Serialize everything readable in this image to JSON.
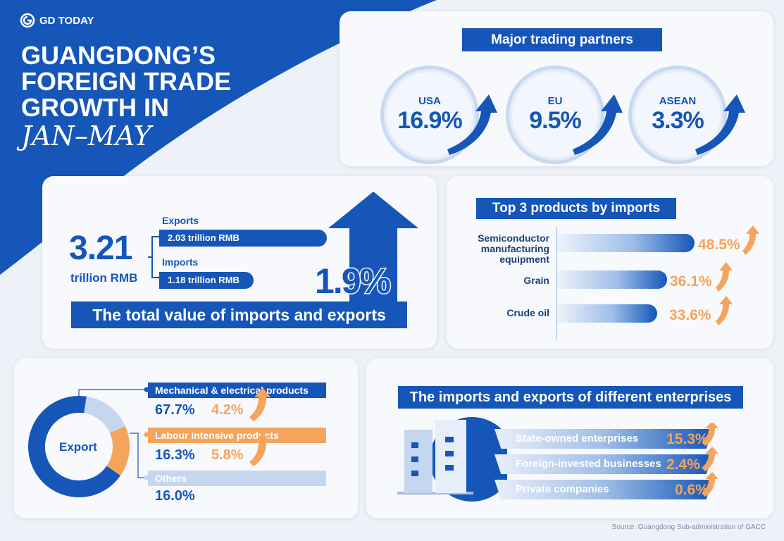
{
  "brand": {
    "logo_text": "GD TODAY"
  },
  "headline": {
    "line1": "GUANGDONG’S",
    "line2": "FOREIGN TRADE",
    "line3": "GROWTH IN",
    "line4": "JAN–MAY"
  },
  "partners": {
    "title": "Major trading partners",
    "items": [
      {
        "name": "USA",
        "value": "16.9%"
      },
      {
        "name": "EU",
        "value": "9.5%"
      },
      {
        "name": "ASEAN",
        "value": "3.3%"
      }
    ]
  },
  "total": {
    "value": "3.21",
    "unit": "trillion RMB",
    "exports_label": "Exports",
    "exports_value": "2.03 trillion RMB",
    "imports_label": "Imports",
    "imports_value": "1.18 trillion RMB",
    "growth": "1.9%",
    "caption": "The total value of imports and exports"
  },
  "products": {
    "title": "Top 3 products by imports",
    "items": [
      {
        "label": "Semiconductor manufacturing equipment",
        "value": "48.5%",
        "pct": 48.5
      },
      {
        "label": "Grain",
        "value": "36.1%",
        "pct": 36.1
      },
      {
        "label": "Crude oil",
        "value": "33.6%",
        "pct": 33.6
      }
    ]
  },
  "export": {
    "center_label": "Export",
    "segments": [
      {
        "label": "Mechanical & electrical products",
        "share": "67.7%",
        "growth": "4.2%",
        "share_num": 67.7,
        "color": "#1556b8"
      },
      {
        "label": "Labour intensive products",
        "share": "16.3%",
        "growth": "5.8%",
        "share_num": 16.3,
        "color": "#f5a45b"
      },
      {
        "label": "Others",
        "share": "16.0%",
        "share_num": 16.0,
        "color": "#c4d7ef"
      }
    ]
  },
  "enterprises": {
    "title": "The imports and exports of different enterprises",
    "items": [
      {
        "label": "State-owned enterprises",
        "value": "15.3%"
      },
      {
        "label": "Foreign-invested businesses",
        "value": "2.4%"
      },
      {
        "label": "Private companies",
        "value": "0.6%"
      }
    ]
  },
  "source": "Source: Guangdong Sub-administration of GACC",
  "colors": {
    "primary": "#1556b8",
    "accent": "#f5a45b",
    "light": "#c4d7ef",
    "background": "#eef1f8"
  }
}
